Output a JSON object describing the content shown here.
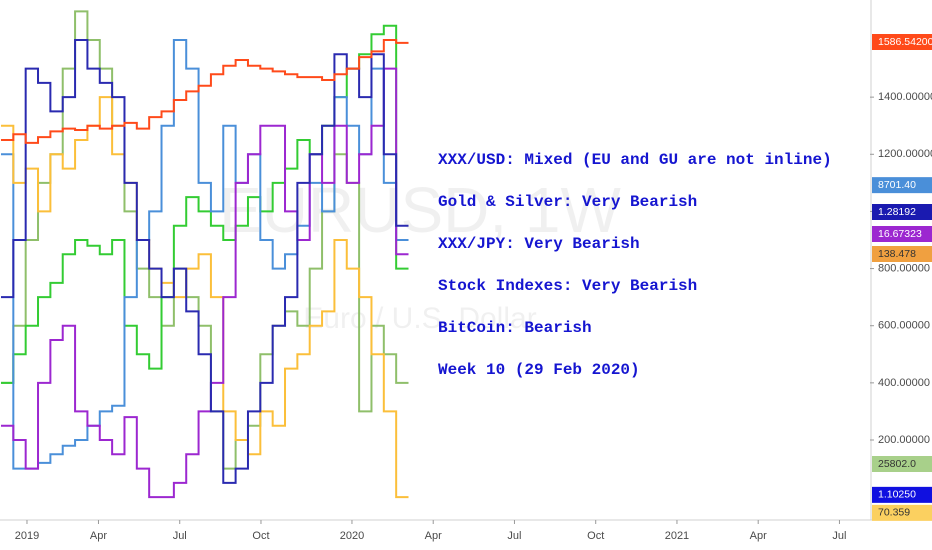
{
  "chart_data": {
    "type": "step-line",
    "watermark": "EURUSD, 1W",
    "watermark_subtitle": "Euro / U.S. Dollar",
    "annotations": [
      "XXX/USD: Mixed (EU and GU are not inline)",
      "Gold & Silver:  Very Bearish",
      "XXX/JPY: Very Bearish",
      "Stock Indexes:  Very Bearish",
      "BitCoin: Bearish",
      "Week 10 (29 Feb 2020)"
    ],
    "x": [
      2018.92,
      2018.958,
      2018.996,
      2019.034,
      2019.072,
      2019.11,
      2019.148,
      2019.186,
      2019.224,
      2019.262,
      2019.3,
      2019.338,
      2019.376,
      2019.414,
      2019.452,
      2019.49,
      2019.528,
      2019.566,
      2019.604,
      2019.642,
      2019.68,
      2019.718,
      2019.756,
      2019.794,
      2019.832,
      2019.87,
      2019.908,
      2019.946,
      2019.984,
      2020.022,
      2020.06,
      2020.098,
      2020.136
    ],
    "xlim": [
      2018.917,
      2021.594
    ],
    "xticks": [
      {
        "value": 2019,
        "label": "2019"
      },
      {
        "value": 2019.22,
        "label": "Apr"
      },
      {
        "value": 2019.47,
        "label": "Jul"
      },
      {
        "value": 2019.72,
        "label": "Oct"
      },
      {
        "value": 2020,
        "label": "2020"
      },
      {
        "value": 2020.25,
        "label": "Apr"
      },
      {
        "value": 2020.5,
        "label": "Jul"
      },
      {
        "value": 2020.75,
        "label": "Oct"
      },
      {
        "value": 2021,
        "label": "2021"
      },
      {
        "value": 2021.25,
        "label": "Apr"
      },
      {
        "value": 2021.5,
        "label": "Jul"
      }
    ],
    "ylim": [
      -80,
      1740
    ],
    "yticks": [
      {
        "value": 200,
        "label": "200.00000"
      },
      {
        "value": 400,
        "label": "400.00000"
      },
      {
        "value": 600,
        "label": "600.00000"
      },
      {
        "value": 800,
        "label": "800.00000"
      },
      {
        "value": 1000,
        "label": "1000.00000"
      },
      {
        "value": 1200,
        "label": "1200.00000"
      },
      {
        "value": 1400,
        "label": "1400.00000"
      }
    ],
    "series": [
      {
        "color": "#8fbf6a",
        "values": [
          400,
          600,
          900,
          1100,
          1200,
          1500,
          1700,
          1600,
          1500,
          1300,
          1000,
          800,
          700,
          600,
          800,
          700,
          600,
          300,
          100,
          200,
          250,
          500,
          600,
          650,
          600,
          800,
          1000,
          1200,
          1100,
          300,
          600,
          500,
          400
        ]
      },
      {
        "color": "#33cc33",
        "values": [
          400,
          500,
          600,
          700,
          750,
          850,
          900,
          880,
          850,
          900,
          600,
          500,
          450,
          700,
          950,
          1050,
          1000,
          950,
          900,
          950,
          1050,
          1000,
          1100,
          1150,
          1250,
          1200,
          1300,
          1400,
          1500,
          1550,
          1620,
          1650,
          800
        ]
      },
      {
        "color": "#4a8fd9",
        "values": [
          1200,
          100,
          100,
          120,
          150,
          180,
          200,
          250,
          300,
          320,
          700,
          900,
          1000,
          1300,
          1600,
          1500,
          1100,
          1000,
          1300,
          1100,
          1200,
          900,
          800,
          850,
          950,
          1100,
          1000,
          1400,
          1300,
          1200,
          1500,
          1100,
          900
        ]
      },
      {
        "color": "#fbbf3a",
        "values": [
          1300,
          1100,
          1150,
          1000,
          1200,
          1150,
          1250,
          1300,
          1400,
          1200,
          1100,
          900,
          800,
          750,
          700,
          800,
          850,
          700,
          300,
          200,
          150,
          300,
          250,
          450,
          500,
          600,
          650,
          900,
          800,
          700,
          500,
          300,
          0
        ]
      },
      {
        "color": "#9c27d0",
        "values": [
          250,
          200,
          100,
          400,
          550,
          600,
          300,
          250,
          200,
          150,
          280,
          100,
          0,
          0,
          50,
          150,
          300,
          400,
          700,
          1100,
          1200,
          1300,
          1300,
          1000,
          900,
          1200,
          1100,
          1300,
          1100,
          1200,
          1300,
          1500,
          850
        ]
      },
      {
        "color": "#2a2ab0",
        "values": [
          700,
          900,
          1500,
          1450,
          1350,
          1400,
          1600,
          1500,
          1450,
          1400,
          1100,
          900,
          800,
          700,
          800,
          650,
          500,
          300,
          50,
          100,
          300,
          400,
          600,
          700,
          1100,
          1200,
          1300,
          1550,
          1500,
          1400,
          1550,
          1200,
          950
        ]
      },
      {
        "color": "#ff4a1a",
        "values": [
          1250,
          1270,
          1240,
          1260,
          1280,
          1290,
          1285,
          1300,
          1290,
          1300,
          1310,
          1290,
          1330,
          1350,
          1390,
          1420,
          1440,
          1480,
          1510,
          1530,
          1510,
          1500,
          1490,
          1480,
          1470,
          1470,
          1460,
          1480,
          1500,
          1540,
          1560,
          1600,
          1590
        ]
      }
    ],
    "tags": [
      {
        "text": "1586.54200",
        "color": "#ff4a1a",
        "level": 1593
      },
      {
        "text": "8701.40",
        "color": "#4a8fd9",
        "level": 1092
      },
      {
        "text": "1.28192",
        "color": "#1a1ab0",
        "level": 998
      },
      {
        "text": "16.67323",
        "color": "#9c27d0",
        "level": 921
      },
      {
        "text": "138.478",
        "color": "#f0a040",
        "level": 851
      },
      {
        "text": "25802.0",
        "color": "#a8d08a",
        "level": 116
      },
      {
        "text": "1.10250",
        "color": "#1010e0",
        "level": 8
      },
      {
        "text": "70.359",
        "color": "#fbd060",
        "level": -55
      }
    ]
  }
}
